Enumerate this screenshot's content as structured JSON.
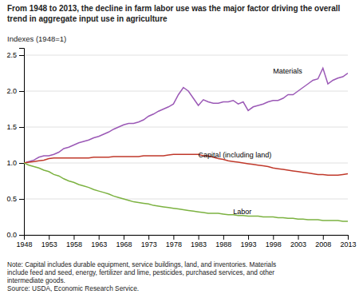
{
  "chart_data": {
    "type": "line",
    "title": [
      "From 1948 to 2013, the decline in farm labor use was the major factor driving the overall",
      "trend in aggregate input use in agriculture"
    ],
    "ylabel": "Indexes (1948=1)",
    "note": [
      "Note: Capital includes durable equipment, service buildings, land, and inventories. Materials",
      "include feed and seed, energy, fertilizer and lime, pesticides, purchased services, and other",
      "intermediate goods.",
      "Source:  USDA, Economic Research Service."
    ],
    "x": [
      1948,
      1949,
      1950,
      1951,
      1952,
      1953,
      1954,
      1955,
      1956,
      1957,
      1958,
      1959,
      1960,
      1961,
      1962,
      1963,
      1964,
      1965,
      1966,
      1967,
      1968,
      1969,
      1970,
      1971,
      1972,
      1973,
      1974,
      1975,
      1976,
      1977,
      1978,
      1979,
      1980,
      1981,
      1982,
      1983,
      1984,
      1985,
      1986,
      1987,
      1988,
      1989,
      1990,
      1991,
      1992,
      1993,
      1994,
      1995,
      1996,
      1997,
      1998,
      1999,
      2000,
      2001,
      2002,
      2003,
      2004,
      2005,
      2006,
      2007,
      2008,
      2009,
      2010,
      2011,
      2012,
      2013
    ],
    "series": [
      {
        "color": "#9B59B6",
        "values": [
          1.0,
          1.02,
          1.04,
          1.08,
          1.1,
          1.1,
          1.12,
          1.15,
          1.2,
          1.22,
          1.25,
          1.28,
          1.3,
          1.32,
          1.35,
          1.37,
          1.4,
          1.43,
          1.47,
          1.5,
          1.53,
          1.55,
          1.55,
          1.57,
          1.6,
          1.65,
          1.68,
          1.72,
          1.75,
          1.78,
          1.82,
          1.95,
          2.05,
          2.0,
          1.9,
          1.8,
          1.88,
          1.85,
          1.83,
          1.83,
          1.85,
          1.85,
          1.87,
          1.82,
          1.85,
          1.73,
          1.78,
          1.8,
          1.82,
          1.85,
          1.87,
          1.87,
          1.9,
          1.95,
          1.95,
          2.0,
          2.05,
          2.1,
          2.15,
          2.17,
          2.32,
          2.1,
          2.15,
          2.18,
          2.2,
          2.25
        ]
      },
      {
        "color": "#C0392B",
        "values": [
          1.0,
          1.01,
          1.02,
          1.03,
          1.04,
          1.06,
          1.07,
          1.07,
          1.07,
          1.07,
          1.07,
          1.07,
          1.07,
          1.07,
          1.08,
          1.08,
          1.08,
          1.08,
          1.09,
          1.09,
          1.09,
          1.09,
          1.09,
          1.09,
          1.1,
          1.1,
          1.1,
          1.1,
          1.1,
          1.11,
          1.12,
          1.12,
          1.12,
          1.12,
          1.12,
          1.12,
          1.1,
          1.1,
          1.08,
          1.06,
          1.05,
          1.03,
          1.02,
          1.01,
          1.0,
          0.99,
          0.98,
          0.97,
          0.96,
          0.95,
          0.93,
          0.92,
          0.91,
          0.9,
          0.89,
          0.88,
          0.87,
          0.86,
          0.85,
          0.84,
          0.84,
          0.83,
          0.83,
          0.83,
          0.84,
          0.85
        ]
      },
      {
        "color": "#7CB241",
        "values": [
          1.0,
          0.97,
          0.95,
          0.93,
          0.9,
          0.88,
          0.84,
          0.82,
          0.78,
          0.75,
          0.73,
          0.7,
          0.68,
          0.66,
          0.63,
          0.61,
          0.59,
          0.57,
          0.54,
          0.52,
          0.5,
          0.48,
          0.46,
          0.45,
          0.44,
          0.43,
          0.41,
          0.4,
          0.39,
          0.38,
          0.37,
          0.36,
          0.35,
          0.34,
          0.33,
          0.32,
          0.31,
          0.3,
          0.3,
          0.3,
          0.29,
          0.28,
          0.28,
          0.27,
          0.27,
          0.26,
          0.26,
          0.26,
          0.25,
          0.25,
          0.25,
          0.24,
          0.24,
          0.23,
          0.23,
          0.22,
          0.22,
          0.21,
          0.21,
          0.21,
          0.2,
          0.2,
          0.2,
          0.2,
          0.19,
          0.19
        ]
      }
    ],
    "annotations": [
      {
        "text": "Materials",
        "x": 1998,
        "y": 2.22
      },
      {
        "text": "Capital (including land)",
        "x": 1983,
        "y": 1.06
      },
      {
        "text": "Labor",
        "x": 1990,
        "y": 0.27
      }
    ],
    "xlim": [
      1948,
      2013
    ],
    "xticks": [
      1948,
      1953,
      1958,
      1963,
      1968,
      1973,
      1978,
      1983,
      1988,
      1993,
      1998,
      2003,
      2008,
      2013
    ],
    "ylim": [
      0,
      2.6
    ],
    "yticks": [
      {
        "value": 0,
        "label": "0.0"
      },
      0.5,
      {
        "value": 1.0,
        "label": "1.0"
      },
      1.5,
      {
        "value": 2.0,
        "label": "2.0"
      },
      2.5
    ],
    "grid": true
  }
}
